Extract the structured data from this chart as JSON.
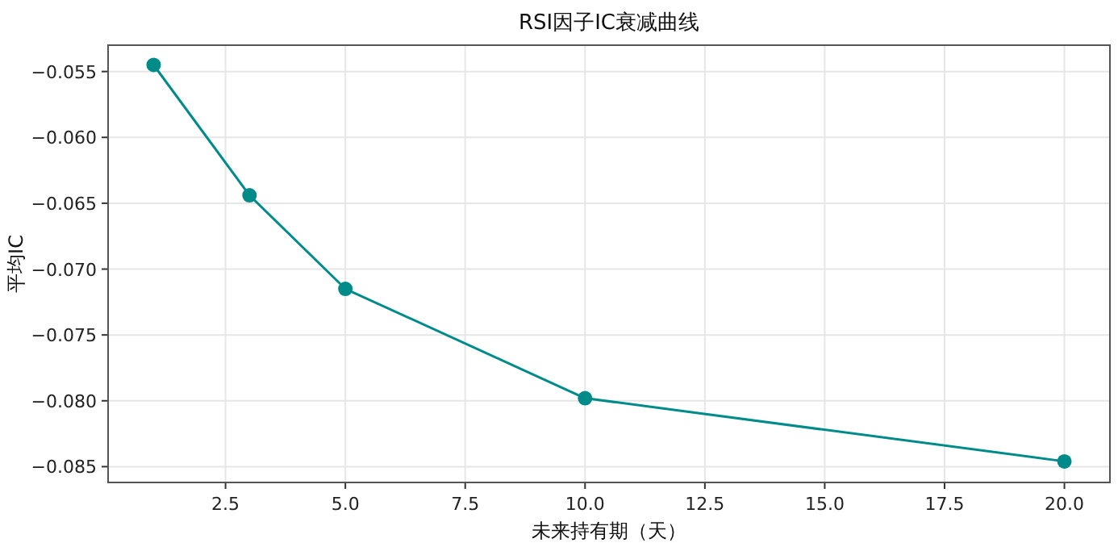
{
  "chart_data": {
    "type": "line",
    "title": "RSI因子IC衰减曲线",
    "xlabel": "未来持有期（天）",
    "ylabel": "平均IC",
    "x": [
      1,
      3,
      5,
      10,
      20
    ],
    "series": [
      {
        "color": "#008b8b",
        "values": [
          -0.0545,
          -0.0644,
          -0.0715,
          -0.0798,
          -0.0846
        ]
      }
    ],
    "xlim": [
      0.05,
      20.95
    ],
    "xticks": [
      {
        "value": 2.5,
        "label": "2.5"
      },
      {
        "value": 5,
        "label": "5.0"
      },
      {
        "value": 7.5,
        "label": "7.5"
      },
      {
        "value": 10,
        "label": "10.0"
      },
      {
        "value": 12.5,
        "label": "12.5"
      },
      {
        "value": 15,
        "label": "15.0"
      },
      {
        "value": 17.5,
        "label": "17.5"
      },
      {
        "value": 20,
        "label": "20.0"
      }
    ],
    "ylim": [
      -0.0862,
      -0.053
    ],
    "yticks": [
      {
        "value": -0.085,
        "label": "−0.085"
      },
      {
        "value": -0.08,
        "label": "−0.080"
      },
      {
        "value": -0.075,
        "label": "−0.075"
      },
      {
        "value": -0.07,
        "label": "−0.070"
      },
      {
        "value": -0.065,
        "label": "−0.065"
      },
      {
        "value": -0.06,
        "label": "−0.060"
      },
      {
        "value": -0.055,
        "label": "−0.055"
      }
    ],
    "grid": true,
    "marker": "circle",
    "line_style": "solid"
  }
}
